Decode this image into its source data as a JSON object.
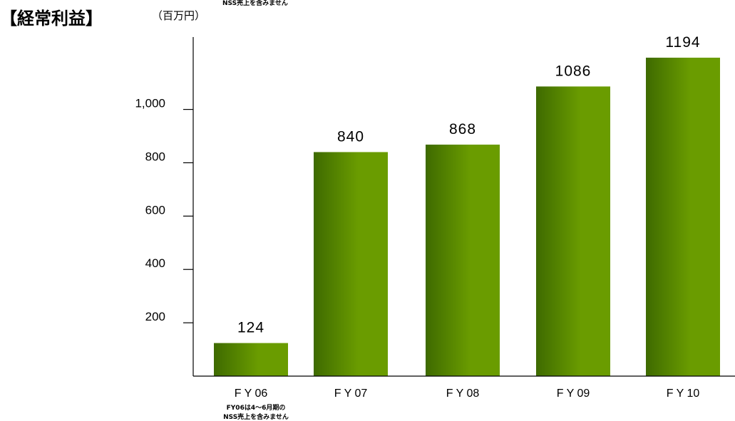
{
  "header": {
    "title": "【経常利益】",
    "unit": "（百万円）",
    "top_note": "NSS売上を含みません"
  },
  "footnote": {
    "lines": [
      "FY06は4～6月期の",
      "NSS売上を含みません"
    ]
  },
  "colors": {
    "bar_dark": "#3E6A00",
    "bar_light": "#6A9C00",
    "axis": "#000000",
    "background": "#FFFFFF"
  },
  "chart_data": {
    "type": "bar",
    "title": "【経常利益】",
    "ylabel": "（百万円）",
    "xlabel": "",
    "categories": [
      "F Y 06",
      "F Y 07",
      "F Y 08",
      "F Y 09",
      "F Y 10"
    ],
    "values": [
      124,
      840,
      868,
      1086,
      1194
    ],
    "value_labels": [
      "124",
      "840",
      "868",
      "1086",
      "1194"
    ],
    "yticks": [
      200,
      400,
      600,
      800,
      1000
    ],
    "ytick_labels": [
      "200",
      "400",
      "600",
      "800",
      "1,000"
    ],
    "ylim": [
      0,
      1100
    ],
    "grid": false,
    "legend": "none"
  }
}
